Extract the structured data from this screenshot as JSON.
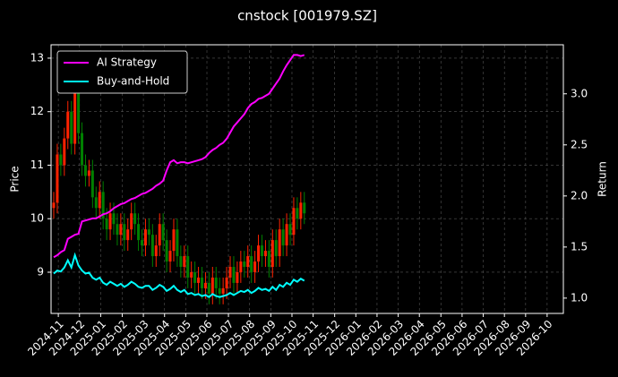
{
  "chart_data": {
    "type": "candlestick",
    "title": "cnstock [001979.SZ]",
    "ylabel": "Price",
    "y2label": "Return",
    "categories": [
      null,
      null,
      null,
      null,
      null,
      null,
      null,
      null,
      null,
      null,
      null,
      null,
      null,
      null,
      null,
      null,
      null,
      null,
      null,
      null,
      null,
      null,
      null,
      null,
      null,
      null,
      null,
      null,
      null,
      null,
      null,
      null,
      null,
      null,
      null,
      null,
      null,
      null,
      null,
      null,
      null,
      null,
      null,
      null,
      null,
      null,
      null,
      null,
      null,
      null,
      null,
      null,
      null,
      null,
      null,
      null,
      null,
      null,
      null,
      null,
      null,
      null,
      null,
      null,
      null,
      null,
      null,
      null,
      null,
      null,
      null,
      null
    ],
    "open": [
      10.2,
      10.3,
      11.2,
      11.0,
      11.5,
      12.0,
      11.4,
      12.5,
      11.6,
      11.0,
      10.8,
      10.9,
      10.4,
      10.2,
      10.5,
      10.0,
      9.8,
      10.1,
      9.9,
      9.7,
      9.9,
      9.6,
      9.8,
      10.1,
      9.9,
      9.6,
      9.5,
      9.8,
      9.7,
      9.3,
      9.5,
      9.9,
      9.6,
      9.2,
      9.4,
      9.8,
      9.3,
      9.1,
      9.3,
      8.9,
      9.0,
      8.8,
      8.9,
      8.7,
      8.8,
      8.6,
      8.9,
      8.7,
      8.6,
      8.7,
      8.9,
      9.1,
      8.8,
      9.0,
      9.2,
      9.1,
      9.3,
      9.0,
      9.2,
      9.5,
      9.3,
      9.4,
      9.1,
      9.6,
      9.3,
      9.8,
      9.5,
      9.9,
      9.7,
      10.2,
      10.0,
      10.3
    ],
    "high": [
      10.5,
      11.4,
      11.4,
      11.7,
      12.2,
      12.2,
      12.8,
      12.7,
      11.8,
      11.2,
      11.1,
      11.1,
      10.6,
      10.7,
      10.7,
      10.2,
      10.3,
      10.3,
      10.1,
      10.1,
      10.1,
      10.0,
      10.3,
      10.3,
      10.1,
      9.8,
      10.0,
      10.0,
      9.9,
      9.7,
      10.1,
      10.1,
      9.8,
      9.6,
      10.0,
      10.0,
      9.5,
      9.5,
      9.5,
      9.2,
      9.2,
      9.1,
      9.1,
      9.0,
      9.0,
      9.1,
      9.1,
      8.9,
      8.9,
      9.1,
      9.3,
      9.3,
      9.2,
      9.4,
      9.4,
      9.5,
      9.5,
      9.4,
      9.7,
      9.7,
      9.6,
      9.6,
      9.8,
      9.8,
      10.0,
      10.0,
      10.1,
      10.1,
      10.4,
      10.4,
      10.5,
      10.5
    ],
    "low": [
      10.0,
      10.1,
      10.8,
      10.8,
      11.3,
      11.2,
      11.2,
      11.4,
      10.8,
      10.6,
      10.6,
      10.2,
      10.0,
      10.0,
      9.8,
      9.6,
      9.6,
      9.7,
      9.5,
      9.5,
      9.4,
      9.4,
      9.6,
      9.7,
      9.4,
      9.3,
      9.3,
      9.5,
      9.1,
      9.1,
      9.3,
      9.4,
      9.0,
      9.0,
      9.2,
      9.1,
      8.9,
      8.9,
      8.7,
      8.7,
      8.6,
      8.6,
      8.5,
      8.5,
      8.4,
      8.4,
      8.5,
      8.4,
      8.4,
      8.5,
      8.7,
      8.6,
      8.6,
      8.8,
      8.9,
      8.9,
      8.8,
      8.8,
      9.0,
      9.1,
      9.1,
      8.9,
      8.9,
      9.1,
      9.1,
      9.3,
      9.3,
      9.5,
      9.5,
      9.8,
      9.8,
      9.9
    ],
    "close": [
      10.3,
      11.2,
      11.0,
      11.5,
      12.0,
      11.4,
      12.5,
      11.6,
      11.0,
      10.8,
      10.9,
      10.4,
      10.2,
      10.5,
      10.0,
      9.8,
      10.1,
      9.9,
      9.7,
      9.9,
      9.6,
      9.8,
      10.1,
      9.9,
      9.6,
      9.5,
      9.8,
      9.7,
      9.3,
      9.5,
      9.9,
      9.6,
      9.2,
      9.4,
      9.8,
      9.3,
      9.1,
      9.3,
      8.9,
      9.0,
      8.8,
      8.9,
      8.7,
      8.8,
      8.6,
      8.9,
      8.7,
      8.6,
      8.7,
      8.9,
      9.1,
      8.8,
      9.0,
      9.2,
      9.1,
      9.3,
      9.0,
      9.2,
      9.5,
      9.3,
      9.4,
      9.1,
      9.6,
      9.3,
      9.8,
      9.5,
      9.9,
      9.7,
      10.2,
      10.0,
      10.3,
      10.1
    ],
    "up_color": "#ff2200",
    "down_color": "#008000",
    "series": [
      {
        "name": "AI Strategy",
        "color": "#ff00ff",
        "axis": "y2",
        "values": [
          1.4,
          1.42,
          1.45,
          1.47,
          1.58,
          1.6,
          1.62,
          1.63,
          1.75,
          1.76,
          1.77,
          1.78,
          1.78,
          1.8,
          1.82,
          1.83,
          1.85,
          1.88,
          1.9,
          1.92,
          1.93,
          1.95,
          1.97,
          1.98,
          2.0,
          2.02,
          2.03,
          2.05,
          2.07,
          2.1,
          2.12,
          2.15,
          2.25,
          2.33,
          2.35,
          2.32,
          2.33,
          2.33,
          2.32,
          2.33,
          2.34,
          2.35,
          2.36,
          2.38,
          2.42,
          2.45,
          2.47,
          2.5,
          2.52,
          2.56,
          2.62,
          2.68,
          2.72,
          2.76,
          2.8,
          2.86,
          2.9,
          2.92,
          2.95,
          2.96,
          2.98,
          3.0,
          3.05,
          3.1,
          3.15,
          3.22,
          3.28,
          3.33,
          3.38,
          3.38,
          3.37,
          3.38
        ]
      },
      {
        "name": "Buy-and-Hold",
        "color": "#00ffff",
        "axis": "y2",
        "values": [
          1.24,
          1.27,
          1.26,
          1.3,
          1.37,
          1.3,
          1.42,
          1.32,
          1.27,
          1.24,
          1.25,
          1.2,
          1.18,
          1.2,
          1.15,
          1.13,
          1.16,
          1.14,
          1.12,
          1.14,
          1.11,
          1.13,
          1.16,
          1.14,
          1.11,
          1.1,
          1.12,
          1.12,
          1.08,
          1.1,
          1.13,
          1.11,
          1.07,
          1.09,
          1.12,
          1.08,
          1.06,
          1.08,
          1.04,
          1.05,
          1.03,
          1.04,
          1.02,
          1.03,
          1.01,
          1.04,
          1.02,
          1.01,
          1.02,
          1.03,
          1.05,
          1.03,
          1.05,
          1.07,
          1.06,
          1.08,
          1.05,
          1.07,
          1.1,
          1.08,
          1.09,
          1.07,
          1.11,
          1.08,
          1.13,
          1.11,
          1.15,
          1.13,
          1.18,
          1.16,
          1.19,
          1.17
        ]
      }
    ],
    "xlim": [
      -0.76,
      144.4
    ],
    "xticks": [
      {
        "value": 1.3,
        "label": "2024-11"
      },
      {
        "value": 7.3,
        "label": "2024-12"
      },
      {
        "value": 13.3,
        "label": "2025-01"
      },
      {
        "value": 19.4,
        "label": "2025-02"
      },
      {
        "value": 25.4,
        "label": "2025-03"
      },
      {
        "value": 31.4,
        "label": "2025-04"
      },
      {
        "value": 37.4,
        "label": "2025-05"
      },
      {
        "value": 43.4,
        "label": "2025-06"
      },
      {
        "value": 49.5,
        "label": "2025-07"
      },
      {
        "value": 55.5,
        "label": "2025-08"
      },
      {
        "value": 61.5,
        "label": "2025-09"
      },
      {
        "value": 67.5,
        "label": "2025-10"
      },
      {
        "value": 73.5,
        "label": "2025-11"
      },
      {
        "value": 79.6,
        "label": "2025-12"
      },
      {
        "value": 85.6,
        "label": "2026-01"
      },
      {
        "value": 91.6,
        "label": "2026-02"
      },
      {
        "value": 97.6,
        "label": "2026-03"
      },
      {
        "value": 103.6,
        "label": "2026-04"
      },
      {
        "value": 109.7,
        "label": "2026-05"
      },
      {
        "value": 115.7,
        "label": "2026-06"
      },
      {
        "value": 121.7,
        "label": "2026-07"
      },
      {
        "value": 127.7,
        "label": "2026-08"
      },
      {
        "value": 133.7,
        "label": "2026-09"
      },
      {
        "value": 139.8,
        "label": "2026-10"
      }
    ],
    "ylim": [
      8.23,
      13.25
    ],
    "yticks": [
      9,
      10,
      11,
      12,
      13
    ],
    "y2lim": [
      0.85,
      3.48
    ],
    "y2ticks": [
      {
        "value": 1.0,
        "label": "1.0"
      },
      {
        "value": 1.5,
        "label": "1.5"
      },
      {
        "value": 2.0,
        "label": "2.0"
      },
      {
        "value": 2.5,
        "label": "2.5"
      },
      {
        "value": 3.0,
        "label": "3.0"
      }
    ],
    "grid": true,
    "legend": "upper left"
  }
}
